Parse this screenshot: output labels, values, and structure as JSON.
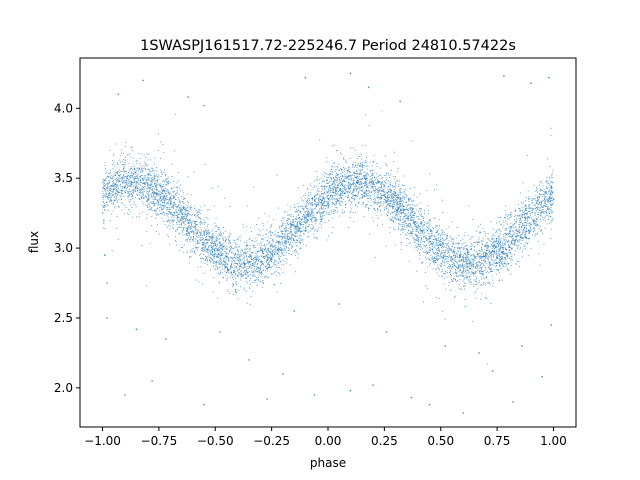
{
  "chart_data": {
    "type": "scatter",
    "title": "1SWASPJ161517.72-225246.7 Period 24810.57422s",
    "xlabel": "phase",
    "ylabel": "flux",
    "xlim": [
      -1.1,
      1.1
    ],
    "ylim": [
      1.72,
      4.36
    ],
    "xticks": [
      -1.0,
      -0.75,
      -0.5,
      -0.25,
      0.0,
      0.25,
      0.5,
      0.75,
      1.0
    ],
    "xtick_labels": [
      "−1.00",
      "−0.75",
      "−0.50",
      "−0.25",
      "0.00",
      "0.25",
      "0.50",
      "0.75",
      "1.00"
    ],
    "yticks": [
      2.0,
      2.5,
      3.0,
      3.5,
      4.0
    ],
    "ytick_labels": [
      "2.0",
      "2.5",
      "3.0",
      "3.5",
      "4.0"
    ],
    "grid": false,
    "point_color": "#1f77b4",
    "model": {
      "description": "phase-folded light curve, sinusoidal with period 1 in phase",
      "mean_flux": 3.18,
      "amplitude": 0.29,
      "peak_phase": 0.13,
      "peak_flux": 3.47,
      "trough_phase": -0.37,
      "trough_flux": 2.89,
      "scatter_sigma": 0.09
    },
    "sample_points": [
      {
        "x": -0.95,
        "y": 3.42
      },
      {
        "x": -0.87,
        "y": 3.47
      },
      {
        "x": -0.75,
        "y": 3.38
      },
      {
        "x": -0.62,
        "y": 3.18
      },
      {
        "x": -0.5,
        "y": 3.02
      },
      {
        "x": -0.37,
        "y": 2.89
      },
      {
        "x": -0.25,
        "y": 2.93
      },
      {
        "x": -0.12,
        "y": 3.12
      },
      {
        "x": 0.0,
        "y": 3.32
      },
      {
        "x": 0.13,
        "y": 3.47
      },
      {
        "x": 0.25,
        "y": 3.38
      },
      {
        "x": 0.38,
        "y": 3.18
      },
      {
        "x": 0.5,
        "y": 3.02
      },
      {
        "x": 0.63,
        "y": 2.89
      },
      {
        "x": 0.75,
        "y": 2.93
      },
      {
        "x": 0.88,
        "y": 3.12
      },
      {
        "x": 1.0,
        "y": 3.35
      }
    ],
    "outliers": [
      {
        "x": -0.93,
        "y": 4.1
      },
      {
        "x": -0.82,
        "y": 4.2
      },
      {
        "x": -0.62,
        "y": 4.08
      },
      {
        "x": -0.55,
        "y": 4.02
      },
      {
        "x": -0.1,
        "y": 4.22
      },
      {
        "x": 0.1,
        "y": 4.25
      },
      {
        "x": 0.18,
        "y": 4.15
      },
      {
        "x": 0.32,
        "y": 4.05
      },
      {
        "x": 0.9,
        "y": 4.18
      },
      {
        "x": 0.98,
        "y": 4.22
      },
      {
        "x": -0.9,
        "y": 1.95
      },
      {
        "x": -0.78,
        "y": 2.05
      },
      {
        "x": -0.55,
        "y": 1.88
      },
      {
        "x": -0.35,
        "y": 2.2
      },
      {
        "x": -0.27,
        "y": 1.92
      },
      {
        "x": -0.2,
        "y": 2.1
      },
      {
        "x": -0.06,
        "y": 1.95
      },
      {
        "x": 0.1,
        "y": 1.98
      },
      {
        "x": 0.2,
        "y": 2.02
      },
      {
        "x": 0.37,
        "y": 1.93
      },
      {
        "x": 0.45,
        "y": 1.88
      },
      {
        "x": 0.6,
        "y": 1.82
      },
      {
        "x": 0.73,
        "y": 2.12
      },
      {
        "x": 0.82,
        "y": 1.9
      },
      {
        "x": 0.95,
        "y": 2.08
      },
      {
        "x": -0.98,
        "y": 2.5
      },
      {
        "x": -0.98,
        "y": 2.75
      },
      {
        "x": -0.99,
        "y": 2.95
      },
      {
        "x": 0.99,
        "y": 2.45
      },
      {
        "x": -0.85,
        "y": 2.42
      },
      {
        "x": -0.72,
        "y": 2.35
      },
      {
        "x": -0.48,
        "y": 2.4
      },
      {
        "x": -0.15,
        "y": 2.55
      },
      {
        "x": 0.05,
        "y": 2.6
      },
      {
        "x": 0.26,
        "y": 2.4
      },
      {
        "x": 0.52,
        "y": 2.3
      },
      {
        "x": 0.67,
        "y": 2.25
      },
      {
        "x": 0.86,
        "y": 2.3
      },
      {
        "x": 0.78,
        "y": 4.23
      }
    ]
  }
}
